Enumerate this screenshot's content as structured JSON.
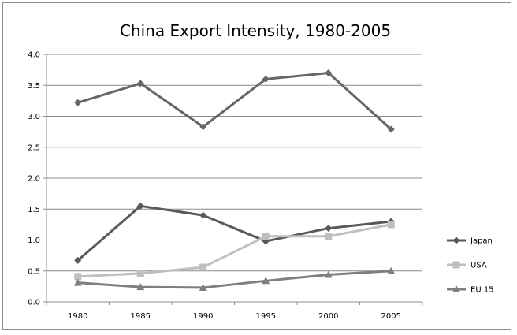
{
  "chart_data": {
    "type": "line",
    "title": "China Export Intensity, 1980-2005",
    "xlabel": "",
    "ylabel": "",
    "categories": [
      "1980",
      "1985",
      "1990",
      "1995",
      "2000",
      "2005"
    ],
    "ylim": [
      0,
      4
    ],
    "yticks": [
      "0.0",
      "0.5",
      "1.0",
      "1.5",
      "2.0",
      "2.5",
      "3.0",
      "3.5",
      "4.0"
    ],
    "grid": "horizontal",
    "legend_position": "right",
    "series": [
      {
        "name": "Japan",
        "values": [
          0.67,
          1.55,
          1.4,
          0.98,
          1.19,
          1.3
        ],
        "color": "#595959",
        "marker": "diamond"
      },
      {
        "name": "USA",
        "values": [
          0.41,
          0.46,
          0.56,
          1.06,
          1.06,
          1.25
        ],
        "color": "#bfbfbf",
        "marker": "square"
      },
      {
        "name": "EU 15",
        "values": [
          0.31,
          0.24,
          0.23,
          0.34,
          0.44,
          0.5
        ],
        "color": "#7f7f7f",
        "marker": "triangle"
      },
      {
        "values": [
          3.22,
          3.53,
          2.83,
          3.6,
          3.7,
          2.79
        ],
        "color": "#666666",
        "marker": "diamond"
      }
    ]
  }
}
